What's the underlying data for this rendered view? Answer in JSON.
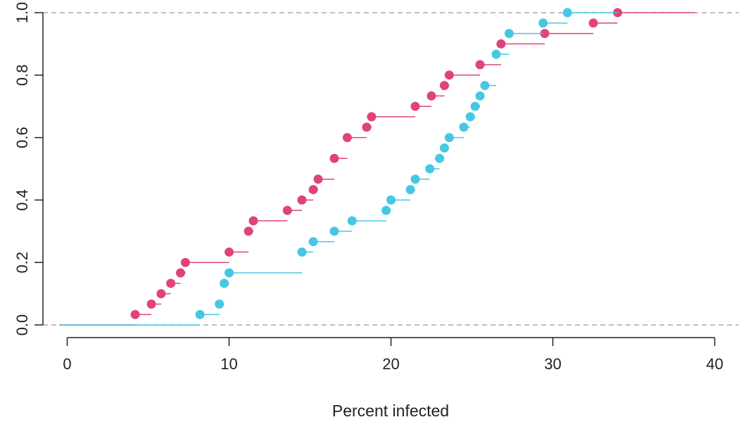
{
  "chart_data": {
    "type": "ecdf-step",
    "title": "",
    "xlabel": "Percent infected",
    "ylabel": "",
    "xlim": [
      -1.5,
      41.5
    ],
    "ylim": [
      0,
      1
    ],
    "x_ticks": [
      0,
      10,
      20,
      30,
      40
    ],
    "y_ticks": [
      0.0,
      0.2,
      0.4,
      0.6,
      0.8,
      1.0
    ],
    "x_tick_labels": [
      "0",
      "10",
      "20",
      "30",
      "40"
    ],
    "y_tick_labels": [
      "0.0",
      "0.2",
      "0.4",
      "0.6",
      "0.8",
      "1.0"
    ],
    "reference_lines_y": [
      0,
      1
    ],
    "start_x": -0.5,
    "series": [
      {
        "color": "#e0437a",
        "x": [
          4.2,
          5.2,
          5.8,
          6.4,
          7.0,
          7.3,
          10.0,
          11.2,
          11.5,
          13.6,
          14.5,
          15.2,
          15.5,
          16.5,
          17.3,
          18.5,
          18.8,
          21.5,
          22.5,
          23.3,
          23.6,
          25.5,
          26.8,
          29.5,
          32.5,
          34.0
        ],
        "y": [
          0.0333,
          0.0667,
          0.1,
          0.1333,
          0.1667,
          0.2,
          0.2333,
          0.3,
          0.3333,
          0.3667,
          0.4,
          0.4333,
          0.4667,
          0.5333,
          0.6,
          0.6333,
          0.6667,
          0.7,
          0.7333,
          0.7667,
          0.8,
          0.8333,
          0.9,
          0.9333,
          0.9667,
          1.0
        ],
        "end_x": 38.8
      },
      {
        "color": "#45c8e3",
        "x": [
          8.2,
          9.4,
          9.7,
          10.0,
          14.5,
          15.2,
          16.5,
          17.6,
          19.7,
          20.0,
          21.2,
          21.5,
          22.4,
          23.0,
          23.3,
          23.6,
          24.5,
          24.9,
          25.2,
          25.5,
          25.8,
          26.5,
          27.3,
          29.4,
          30.9
        ],
        "y": [
          0.0333,
          0.0667,
          0.1333,
          0.1667,
          0.2333,
          0.2667,
          0.3,
          0.3333,
          0.3667,
          0.4,
          0.4333,
          0.4667,
          0.5,
          0.5333,
          0.5667,
          0.6,
          0.6333,
          0.6667,
          0.7,
          0.7333,
          0.7667,
          0.8667,
          0.9333,
          0.9667,
          1.0
        ],
        "end_x": 34.0
      }
    ]
  }
}
